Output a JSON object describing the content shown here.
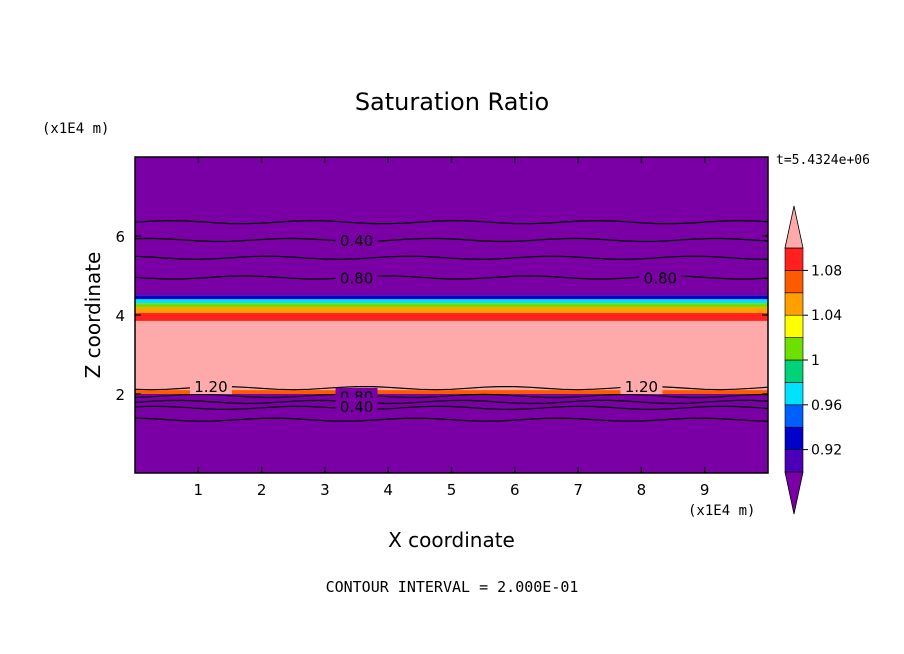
{
  "chart_data": {
    "type": "heatmap",
    "title": "Saturation Ratio",
    "xlabel": "X coordinate",
    "ylabel": "Z coordinate",
    "x_unit": "(x1E4 m)",
    "y_unit": "(x1E4 m)",
    "xlim": [
      0,
      10
    ],
    "ylim": [
      0,
      8
    ],
    "x_ticks": [
      1,
      2,
      3,
      4,
      5,
      6,
      7,
      8,
      9
    ],
    "y_ticks": [
      2,
      4,
      6
    ],
    "time_label": "t=5.4324e+06",
    "footer": "CONTOUR INTERVAL = 2.000E-01",
    "colorbar": {
      "levels": [
        0.9,
        0.92,
        0.94,
        0.96,
        0.98,
        1.0,
        1.02,
        1.04,
        1.06,
        1.08,
        1.1
      ],
      "colors": [
        "#7a00a6",
        "#4b00b8",
        "#0000c8",
        "#0060ff",
        "#00e0ff",
        "#00d27a",
        "#6ee000",
        "#ffff00",
        "#ffa000",
        "#ff5a00",
        "#ff2020",
        "#ffaaaa"
      ],
      "tick_labels": [
        "0.92",
        "0.96",
        "1",
        "1.04",
        "1.08"
      ],
      "tick_values": [
        0.92,
        0.96,
        1.0,
        1.04,
        1.08
      ]
    },
    "bands": [
      {
        "z0": 0.0,
        "z1": 2.0,
        "value": 0.4
      },
      {
        "z0": 2.0,
        "z1": 2.1,
        "value": 1.06
      },
      {
        "z0": 2.1,
        "z1": 3.85,
        "value": 1.2
      },
      {
        "z0": 3.85,
        "z1": 4.05,
        "value": 1.08
      },
      {
        "z0": 4.05,
        "z1": 4.2,
        "value": 1.05
      },
      {
        "z0": 4.2,
        "z1": 4.3,
        "value": 1.0
      },
      {
        "z0": 4.3,
        "z1": 4.4,
        "value": 0.97
      },
      {
        "z0": 4.4,
        "z1": 4.5,
        "value": 0.93
      },
      {
        "z0": 4.5,
        "z1": 8.0,
        "value": 0.5
      }
    ],
    "contour_lines": [
      {
        "z": 6.35,
        "label": ""
      },
      {
        "z": 5.9,
        "label": "0.40"
      },
      {
        "z": 5.45,
        "label": ""
      },
      {
        "z": 4.95,
        "label": "0.80"
      },
      {
        "z": 2.15,
        "label": "1.20"
      },
      {
        "z": 1.95,
        "label": "0.80"
      },
      {
        "z": 1.8,
        "label": "0.40"
      },
      {
        "z": 1.65,
        "label": ""
      },
      {
        "z": 1.35,
        "label": ""
      }
    ],
    "contour_labels": [
      {
        "text": "0.40",
        "x": 3.5,
        "z": 5.9
      },
      {
        "text": "0.80",
        "x": 3.5,
        "z": 4.95
      },
      {
        "text": "0.80",
        "x": 8.3,
        "z": 4.95
      },
      {
        "text": "1.20",
        "x": 1.2,
        "z": 2.2
      },
      {
        "text": "1.20",
        "x": 8.0,
        "z": 2.2
      },
      {
        "text": "0.80",
        "x": 3.5,
        "z": 1.95
      },
      {
        "text": "0.40",
        "x": 3.5,
        "z": 1.7
      }
    ]
  }
}
